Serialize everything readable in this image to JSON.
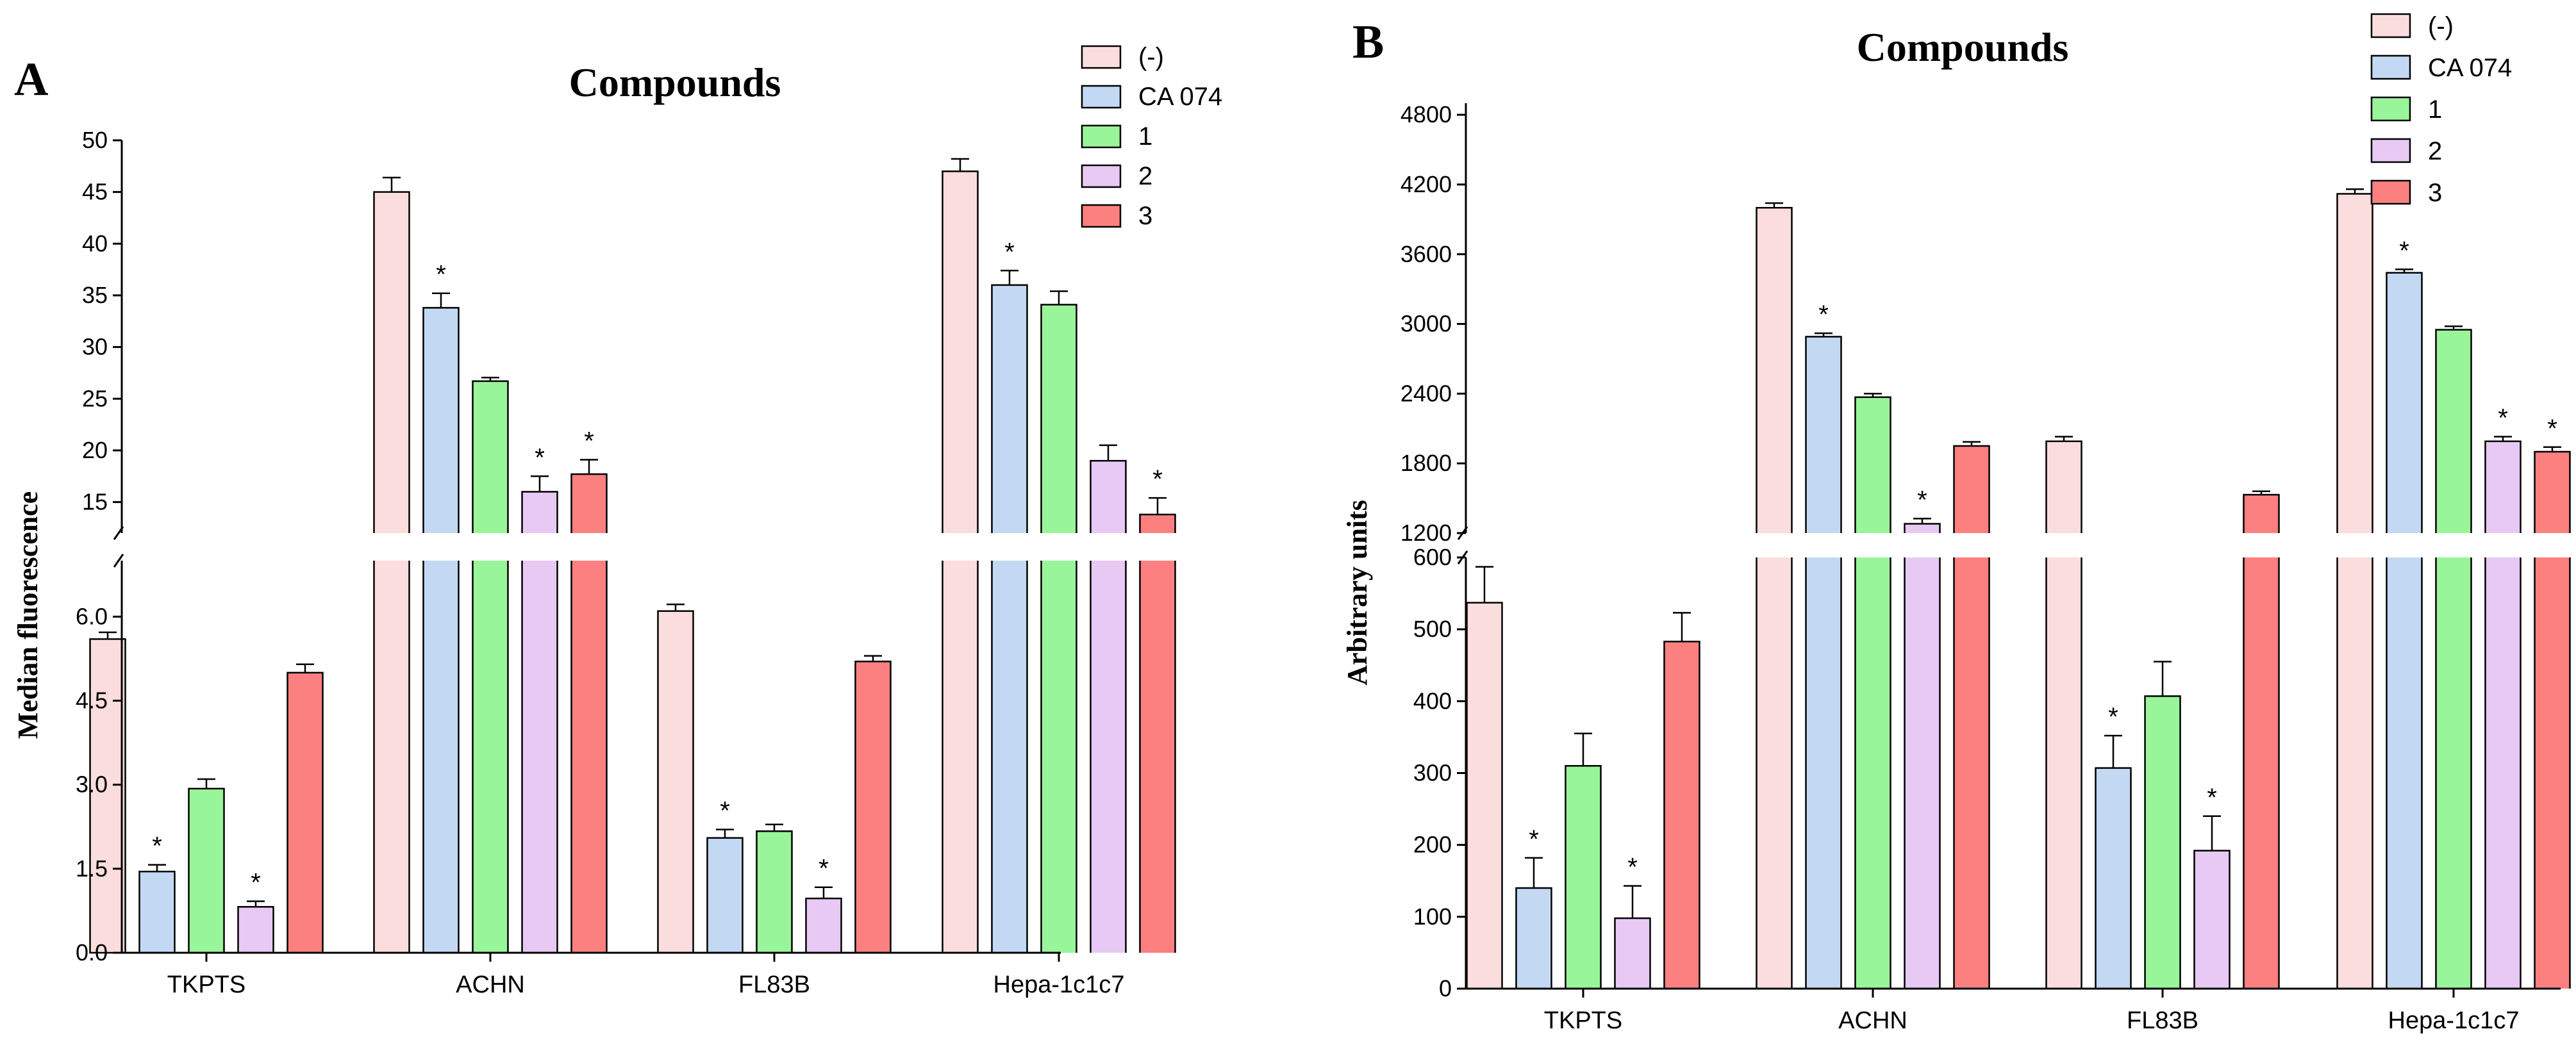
{
  "chart_data": [
    {
      "type": "bar",
      "panel": "A",
      "title": "Compounds",
      "xlabel": "",
      "ylabel": "Median fluorescence",
      "categories": [
        "TKPTS",
        "ACHN",
        "FL83B",
        "Hepa-1c1c7"
      ],
      "broken_axis": true,
      "lower_ylim": [
        0,
        7
      ],
      "upper_ylim": [
        12,
        50
      ],
      "lower_ticks": [
        0.0,
        1.5,
        3.0,
        4.5,
        6.0
      ],
      "lower_tick_labels": [
        "0.0",
        "1.5",
        "3.0",
        "4.5",
        "6.0"
      ],
      "upper_ticks": [
        15,
        20,
        25,
        30,
        35,
        40,
        45,
        50
      ],
      "upper_tick_labels": [
        "15",
        "20",
        "25",
        "30",
        "35",
        "40",
        "45",
        "50"
      ],
      "legend_position": "top-right",
      "series": [
        {
          "name": "(-)",
          "color": "#FCDDDD",
          "values": [
            5.6,
            45.0,
            6.1,
            47.0
          ],
          "errors": [
            0.12,
            1.4,
            0.12,
            1.2
          ],
          "significant": [
            false,
            false,
            false,
            false
          ]
        },
        {
          "name": "CA 074",
          "color": "#C3D9F3",
          "values": [
            1.45,
            33.8,
            2.05,
            36.0
          ],
          "errors": [
            0.12,
            1.4,
            0.15,
            1.4
          ],
          "significant": [
            true,
            true,
            true,
            true
          ]
        },
        {
          "name": "1",
          "color": "#99F599",
          "values": [
            2.93,
            26.7,
            2.17,
            34.1
          ],
          "errors": [
            0.17,
            0.35,
            0.12,
            1.3
          ],
          "significant": [
            false,
            false,
            false,
            false
          ]
        },
        {
          "name": "2",
          "color": "#E7C9F4",
          "values": [
            0.82,
            16.0,
            0.97,
            19.0
          ],
          "errors": [
            0.1,
            1.5,
            0.2,
            1.5
          ],
          "significant": [
            true,
            true,
            true,
            false
          ]
        },
        {
          "name": "3",
          "color": "#FC8080",
          "values": [
            5.0,
            17.7,
            5.2,
            13.8
          ],
          "errors": [
            0.15,
            1.4,
            0.1,
            1.6
          ],
          "significant": [
            false,
            true,
            false,
            true
          ]
        }
      ]
    },
    {
      "type": "bar",
      "panel": "B",
      "title": "Compounds",
      "xlabel": "",
      "ylabel": "Arbitrary units",
      "categories": [
        "TKPTS",
        "ACHN",
        "FL83B",
        "Hepa-1c1c7"
      ],
      "broken_axis": true,
      "lower_ylim": [
        0,
        600
      ],
      "upper_ylim": [
        1200,
        4900
      ],
      "lower_ticks": [
        0,
        100,
        200,
        300,
        400,
        500,
        600
      ],
      "lower_tick_labels": [
        "0",
        "100",
        "200",
        "300",
        "400",
        "500",
        "600"
      ],
      "upper_ticks": [
        1200,
        1800,
        2400,
        3000,
        3600,
        4200,
        4800
      ],
      "upper_tick_labels": [
        "1200",
        "1800",
        "2400",
        "3000",
        "3600",
        "4200",
        "4800"
      ],
      "legend_position": "top-right",
      "series": [
        {
          "name": "(-)",
          "color": "#FCDDDD",
          "values": [
            537,
            4000,
            1990,
            4120
          ],
          "errors": [
            50,
            40,
            40,
            40
          ],
          "significant": [
            false,
            false,
            false,
            false
          ]
        },
        {
          "name": "CA 074",
          "color": "#C3D9F3",
          "values": [
            140,
            2890,
            307,
            3440
          ],
          "errors": [
            42,
            30,
            45,
            30
          ],
          "significant": [
            true,
            true,
            true,
            true
          ]
        },
        {
          "name": "1",
          "color": "#99F599",
          "values": [
            310,
            2370,
            407,
            2950
          ],
          "errors": [
            45,
            30,
            48,
            30
          ],
          "significant": [
            false,
            false,
            false,
            false
          ]
        },
        {
          "name": "2",
          "color": "#E7C9F4",
          "values": [
            98,
            1280,
            192,
            1990
          ],
          "errors": [
            45,
            45,
            48,
            40
          ],
          "significant": [
            true,
            true,
            true,
            true
          ]
        },
        {
          "name": "3",
          "color": "#FC8080",
          "values": [
            483,
            1950,
            1530,
            1900
          ],
          "errors": [
            40,
            35,
            30,
            40
          ],
          "significant": [
            false,
            false,
            false,
            true
          ]
        }
      ]
    }
  ],
  "significance_symbol": "*"
}
